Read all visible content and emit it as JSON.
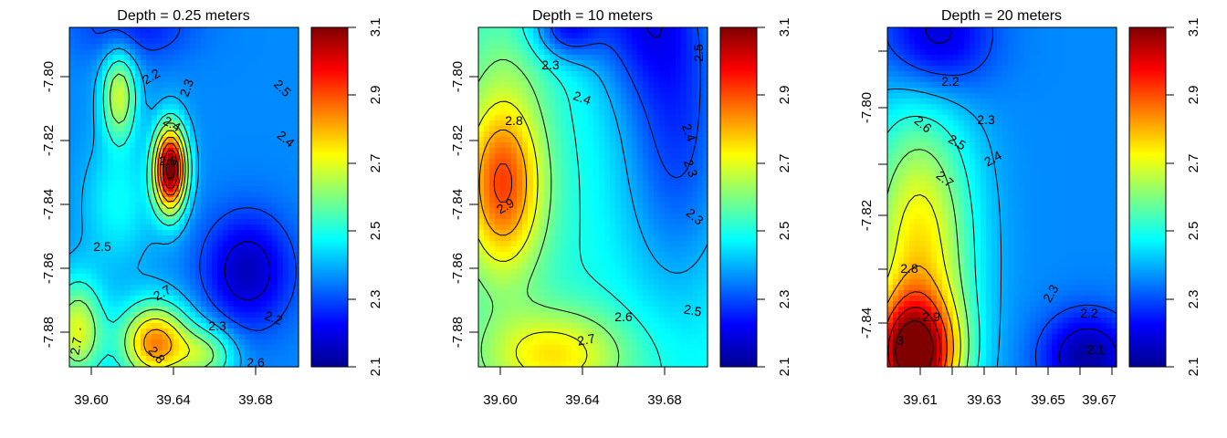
{
  "colors": {
    "colormap": [
      "#00008f",
      "#0000ff",
      "#0080ff",
      "#00ffff",
      "#80ff80",
      "#ffff00",
      "#ff8000",
      "#ff0000",
      "#800000"
    ],
    "contour_line": "#000000",
    "frame": "#000000"
  },
  "chart_data": [
    {
      "type": "heatmap",
      "title": "Depth =  0.25 meters",
      "xlabel": "",
      "ylabel": "",
      "xlim": [
        39.588,
        39.7
      ],
      "ylim": [
        -7.891,
        -7.806
      ],
      "x_ticks": [
        "39.60",
        "39.64",
        "39.68"
      ],
      "y_ticks": [
        "-7.80",
        "-7.82",
        "-7.84",
        "-7.86",
        "-7.88"
      ],
      "colorbar": {
        "range": [
          2.1,
          3.1
        ],
        "ticks": [
          "2.1",
          "2.3",
          "2.5",
          "2.7",
          "2.9",
          "3.1"
        ]
      },
      "grid": false,
      "contour_labels": [
        "2.2",
        "2.3",
        "2.5",
        "2.4",
        "2.4",
        "2.6",
        "2.5",
        "2.7",
        "2.3",
        "2.2",
        "2.6",
        "2.8",
        "2.7"
      ],
      "features": [
        {
          "x": 39.6375,
          "y": -7.8415,
          "value": 3.15,
          "sx": 0.0055,
          "sy": 0.0075
        },
        {
          "x": 39.675,
          "y": -7.867,
          "value": 2.15,
          "sx": 0.015,
          "sy": 0.01
        },
        {
          "x": 39.612,
          "y": -7.85,
          "value": 2.48,
          "sx": 0.012,
          "sy": 0.011
        },
        {
          "x": 39.6125,
          "y": -7.823,
          "value": 2.68,
          "sx": 0.006,
          "sy": 0.008
        },
        {
          "x": 39.63,
          "y": -7.885,
          "value": 2.85,
          "sx": 0.012,
          "sy": 0.007
        },
        {
          "x": 39.592,
          "y": -7.882,
          "value": 2.7,
          "sx": 0.009,
          "sy": 0.009
        },
        {
          "x": 39.62,
          "y": -7.806,
          "value": 2.25,
          "sx": 0.02,
          "sy": 0.006
        },
        {
          "x": 39.655,
          "y": -7.888,
          "value": 2.6,
          "sx": 0.01,
          "sy": 0.005
        }
      ],
      "base": 2.36
    },
    {
      "type": "heatmap",
      "title": "Depth =  10 meters",
      "xlabel": "",
      "ylabel": "",
      "xlim": [
        39.588,
        39.7
      ],
      "ylim": [
        -7.891,
        -7.806
      ],
      "x_ticks": [
        "39.60",
        "39.64",
        "39.68"
      ],
      "y_ticks": [
        "-7.80",
        "-7.82",
        "-7.84",
        "-7.86",
        "-7.88"
      ],
      "colorbar": {
        "range": [
          2.1,
          3.1
        ],
        "ticks": [
          "2.1",
          "2.3",
          "2.5",
          "2.7",
          "2.9",
          "3.1"
        ]
      },
      "grid": false,
      "contour_labels": [
        "2.3",
        "2.5",
        "2.4",
        "2.8",
        "2.4",
        "2.3",
        "2.9",
        "2.3",
        "2.6",
        "2.5",
        "2.7"
      ],
      "features": [
        {
          "x": 39.6,
          "y": -7.845,
          "value": 2.92,
          "sx": 0.014,
          "sy": 0.016
        },
        {
          "x": 39.625,
          "y": -7.888,
          "value": 2.75,
          "sx": 0.025,
          "sy": 0.008
        },
        {
          "x": 39.61,
          "y": -7.81,
          "value": 2.55,
          "sx": 0.02,
          "sy": 0.01
        },
        {
          "x": 39.685,
          "y": -7.83,
          "value": 2.28,
          "sx": 0.02,
          "sy": 0.03
        },
        {
          "x": 39.63,
          "y": -7.806,
          "value": 2.25,
          "sx": 0.012,
          "sy": 0.006
        },
        {
          "x": 39.665,
          "y": -7.8,
          "value": 2.3,
          "sx": 0.02,
          "sy": 0.015
        }
      ],
      "base": 2.5
    },
    {
      "type": "heatmap",
      "title": "Depth =  20 meters",
      "xlabel": "",
      "ylabel": "",
      "xlim": [
        39.6,
        39.672
      ],
      "ylim": [
        -7.848,
        -7.782
      ],
      "x_ticks": [
        "39.61",
        "39.63",
        "39.65",
        "39.67"
      ],
      "y_ticks": [
        "-7.80",
        "-7.82",
        "-7.84"
      ],
      "colorbar": {
        "range": [
          2.1,
          3.1
        ],
        "ticks": [
          "2.1",
          "2.3",
          "2.5",
          "2.7",
          "2.9",
          "3.1"
        ]
      },
      "grid": false,
      "contour_labels": [
        "2.2",
        "2.3",
        "2.6",
        "2.5",
        "2.4",
        "2.7",
        "2.8",
        "2.3",
        "2.9",
        "3",
        "2.2",
        "2.1"
      ],
      "features": [
        {
          "x": 39.608,
          "y": -7.846,
          "value": 3.0,
          "sx": 0.01,
          "sy": 0.008
        },
        {
          "x": 39.61,
          "y": -7.825,
          "value": 2.75,
          "sx": 0.012,
          "sy": 0.02
        },
        {
          "x": 39.615,
          "y": -7.784,
          "value": 2.15,
          "sx": 0.012,
          "sy": 0.008
        },
        {
          "x": 39.663,
          "y": -7.846,
          "value": 2.12,
          "sx": 0.01,
          "sy": 0.006
        }
      ],
      "base": 2.36
    }
  ]
}
